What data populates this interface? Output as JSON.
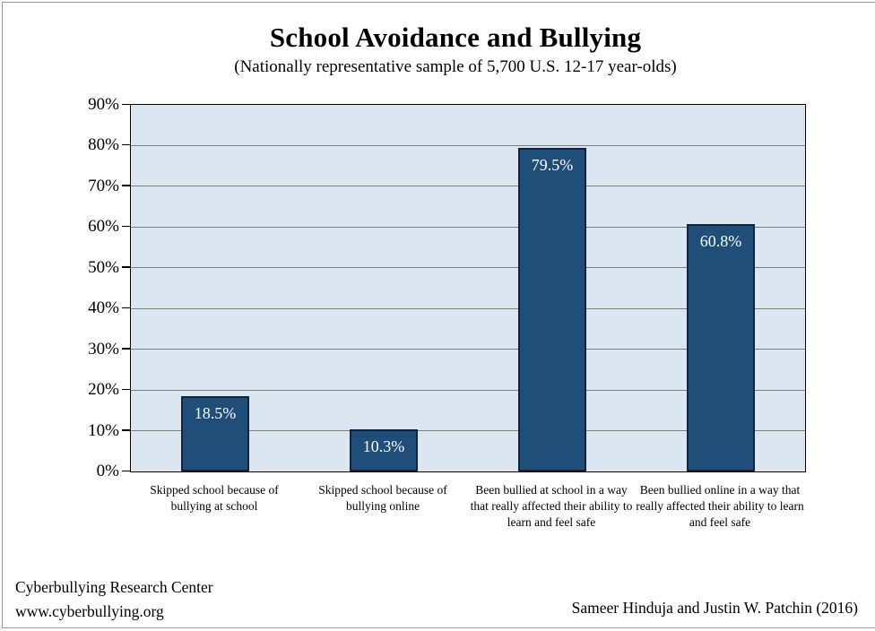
{
  "chart_data": {
    "type": "bar",
    "title": "School Avoidance and Bullying",
    "subtitle": "(Nationally representative sample of 5,700 U.S. 12-17 year-olds)",
    "categories": [
      "Skipped school because of bullying at school",
      "Skipped school because of bullying online",
      "Been bullied at school in a way that really affected their ability to learn and feel safe",
      "Been bullied online in a way that really affected their ability to learn and feel safe"
    ],
    "values": [
      18.5,
      10.3,
      79.5,
      60.8
    ],
    "data_labels": [
      "18.5%",
      "10.3%",
      "79.5%",
      "60.8%"
    ],
    "xlabel": "",
    "ylabel": "",
    "ylim": [
      0,
      90
    ],
    "ytick_step": 10,
    "ytick_suffix": "%",
    "grid": true,
    "legend_position": "none",
    "colors": {
      "bar_fill": "#1F4E79",
      "bar_border": "#14243C",
      "plot_background": "#DCE6F1",
      "gridline": "#7F7F7F",
      "axis_border": "#000000",
      "data_label_text": "#FFFFFF"
    }
  },
  "footer": {
    "org_name": "Cyberbullying Research Center",
    "org_url": "www.cyberbullying.org",
    "credit": "Sameer Hinduja and Justin W. Patchin (2016)"
  }
}
